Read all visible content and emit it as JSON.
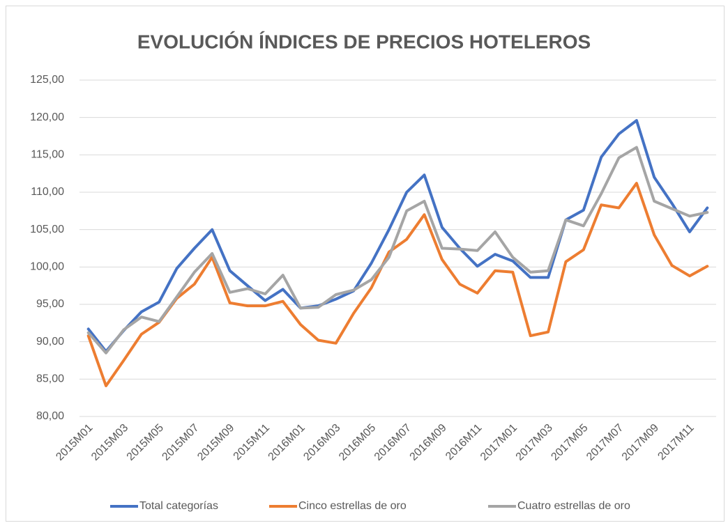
{
  "chart_data": {
    "type": "line",
    "title": "EVOLUCIÓN ÍNDICES DE PRECIOS HOTELEROS",
    "categories": [
      "2015M01",
      null,
      "2015M03",
      null,
      "2015M05",
      null,
      "2015M07",
      null,
      "2015M09",
      null,
      "2015M11",
      null,
      "2016M01",
      null,
      "2016M03",
      null,
      "2016M05",
      null,
      "2016M07",
      null,
      "2016M09",
      null,
      "2016M11",
      null,
      "2017M01",
      null,
      "2017M03",
      null,
      "2017M05",
      null,
      "2017M07",
      null,
      "2017M09",
      null,
      "2017M11",
      null
    ],
    "series": [
      {
        "name": "Total categorías",
        "color": "#4472c4",
        "values": [
          91.7,
          88.7,
          91.5,
          94,
          95.3,
          99.8,
          102.5,
          105,
          99.5,
          97.5,
          95.5,
          97,
          94.5,
          94.8,
          95.7,
          96.8,
          100.5,
          105,
          110,
          112.3,
          105.3,
          102.5,
          100.1,
          101.7,
          100.8,
          98.6,
          98.6,
          106.3,
          107.6,
          114.7,
          117.8,
          119.6,
          112,
          108.5,
          104.7,
          107.9
        ]
      },
      {
        "name": "Cinco estrellas de oro",
        "color": "#ed7d31",
        "values": [
          90.8,
          84.1,
          87.5,
          91,
          92.6,
          95.8,
          97.7,
          101.3,
          95.2,
          94.8,
          94.8,
          95.4,
          92.3,
          90.2,
          89.8,
          93.8,
          97.2,
          102,
          103.7,
          107,
          101,
          97.7,
          96.5,
          99.5,
          99.3,
          90.8,
          91.3,
          100.7,
          102.3,
          108.3,
          107.9,
          111.2,
          104.3,
          100.2,
          98.8,
          100.1
        ]
      },
      {
        "name": "Cuatro estrellas de oro",
        "color": "#a5a5a5",
        "values": [
          91.2,
          88.5,
          91.6,
          93.3,
          92.7,
          96,
          99.3,
          101.8,
          96.6,
          97.1,
          96.4,
          98.9,
          94.5,
          94.6,
          96.3,
          96.9,
          98.3,
          101.3,
          107.5,
          108.8,
          102.5,
          102.4,
          102.2,
          104.7,
          101.3,
          99.3,
          99.5,
          106.3,
          105.5,
          109.8,
          114.6,
          116,
          108.8,
          107.8,
          106.8,
          107.3
        ]
      }
    ],
    "ylim": [
      80,
      125
    ],
    "yticks": [
      {
        "value": 80,
        "label": "80,00"
      },
      {
        "value": 85,
        "label": "85,00"
      },
      {
        "value": 90,
        "label": "90,00"
      },
      {
        "value": 95,
        "label": "95,00"
      },
      {
        "value": 100,
        "label": "100,00"
      },
      {
        "value": 105,
        "label": "105,00"
      },
      {
        "value": 110,
        "label": "110,00"
      },
      {
        "value": 115,
        "label": "115,00"
      },
      {
        "value": 120,
        "label": "120,00"
      },
      {
        "value": 125,
        "label": "125,00"
      }
    ],
    "grid": true,
    "legend": "bottom"
  }
}
